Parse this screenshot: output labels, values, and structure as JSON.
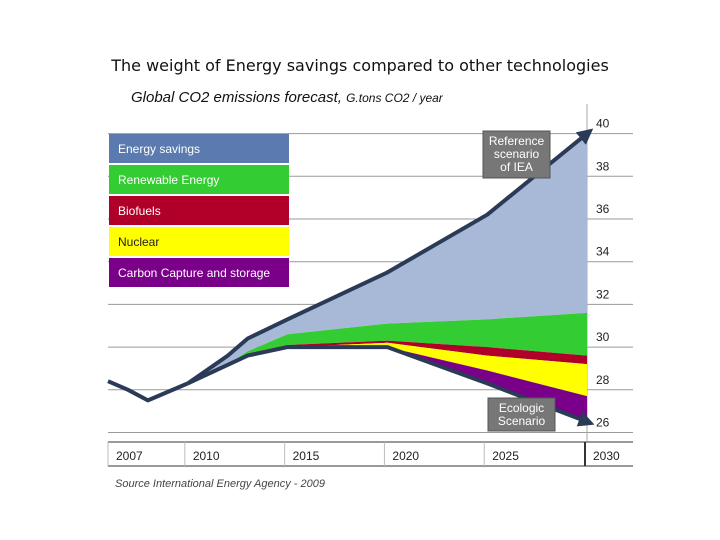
{
  "title": "The weight of Energy savings compared to other technologies",
  "subtitle": "Global CO2 emissions forecast,",
  "unit": "G.tons CO2 / year",
  "source": "Source International Energy Agency - 2009",
  "chart_data": {
    "type": "area",
    "x_ticks": [
      2007,
      2010,
      2015,
      2020,
      2025,
      2030
    ],
    "y_ticks": [
      26,
      28,
      30,
      32,
      34,
      36,
      38,
      40
    ],
    "xlim": [
      2006,
      2030
    ],
    "ylim": [
      25.6,
      41.2
    ],
    "grid": true,
    "legend_placement": "top-left",
    "history": {
      "x": [
        2006,
        2007,
        2008,
        2010
      ],
      "y": [
        28.4,
        28.0,
        27.5,
        28.3
      ]
    },
    "reference_scenario": {
      "name": "Reference scenario of IEA",
      "x": [
        2010,
        2012,
        2013,
        2015,
        2020,
        2025,
        2030
      ],
      "y": [
        28.3,
        29.6,
        30.4,
        31.3,
        33.5,
        36.2,
        40.0
      ]
    },
    "ecologic_scenario": {
      "name": "Ecologic Scenario",
      "x": [
        2010,
        2013,
        2015,
        2020,
        2025,
        2030
      ],
      "y": [
        28.3,
        29.6,
        30.0,
        30.0,
        28.3,
        26.5
      ]
    },
    "series": [
      {
        "name": "Energy savings",
        "color": "#a7b9d6",
        "x": [
          2010,
          2012,
          2013,
          2015,
          2020,
          2025,
          2030
        ],
        "bottom": [
          28.3,
          29.2,
          29.8,
          30.6,
          31.1,
          31.3,
          31.6
        ],
        "top": [
          28.3,
          29.6,
          30.4,
          31.3,
          33.5,
          36.2,
          40.0
        ]
      },
      {
        "name": "Renewable Energy",
        "color": "#33cc33",
        "x": [
          2010,
          2012,
          2013,
          2015,
          2020,
          2025,
          2030
        ],
        "bottom": [
          28.3,
          29.1,
          29.7,
          30.1,
          30.3,
          30.0,
          29.6
        ],
        "top": [
          28.3,
          29.2,
          29.8,
          30.6,
          31.1,
          31.3,
          31.6
        ]
      },
      {
        "name": "Biofuels",
        "color": "#b0002a",
        "x": [
          2010,
          2013,
          2015,
          2020,
          2025,
          2030
        ],
        "bottom": [
          28.3,
          29.6,
          30.0,
          30.2,
          29.6,
          29.2
        ],
        "top": [
          28.3,
          29.7,
          30.1,
          30.3,
          30.0,
          29.6
        ]
      },
      {
        "name": "Nuclear",
        "color": "#ffff00",
        "x": [
          2010,
          2013,
          2015,
          2020,
          2025,
          2030
        ],
        "bottom": [
          28.3,
          29.6,
          30.0,
          30.0,
          28.9,
          27.7
        ],
        "top": [
          28.3,
          29.6,
          30.0,
          30.2,
          29.6,
          29.2
        ]
      },
      {
        "name": "Carbon Capture and storage",
        "color": "#7a008a",
        "x": [
          2010,
          2013,
          2015,
          2020,
          2025,
          2030
        ],
        "bottom": [
          28.3,
          29.6,
          30.0,
          30.0,
          28.3,
          26.5
        ],
        "top": [
          28.3,
          29.6,
          30.0,
          30.0,
          28.9,
          27.7
        ]
      }
    ]
  }
}
